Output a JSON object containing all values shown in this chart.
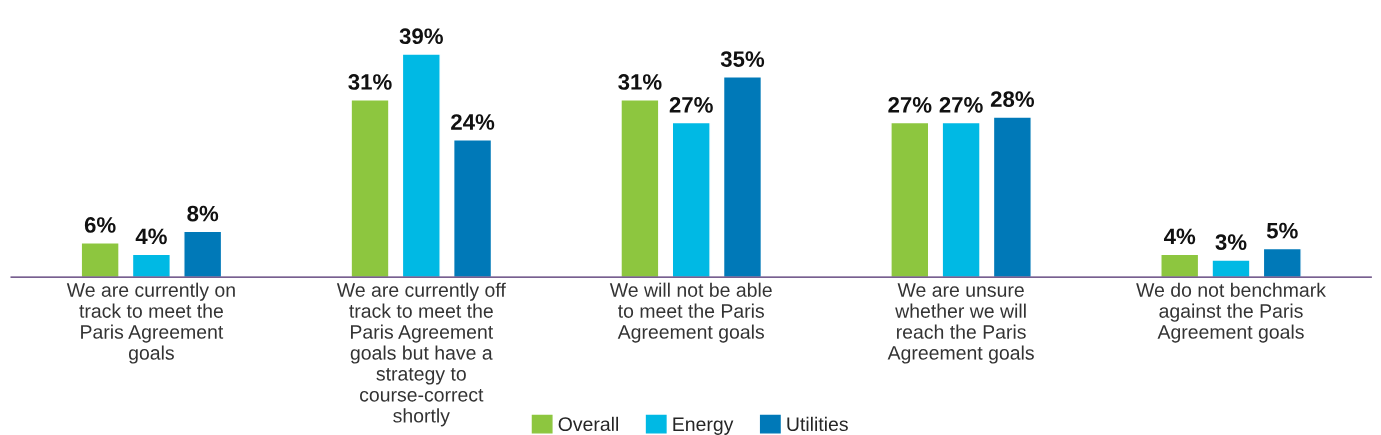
{
  "chart_data": {
    "type": "bar",
    "categories": [
      "We are currently on track to meet the Paris Agreement goals",
      "We are currently off track to meet the Paris Agreement goals but have a strategy to course-correct shortly",
      "We will not be able to meet the Paris Agreement goals",
      "We are unsure whether we will reach the Paris Agreement goals",
      "We do not benchmark against the Paris Agreement goals"
    ],
    "series": [
      {
        "name": "Overall",
        "color": "#8dc63f",
        "values": [
          6,
          31,
          31,
          27,
          4
        ],
        "value_labels": [
          "6%",
          "31%",
          "31%",
          "27%",
          "4%"
        ]
      },
      {
        "name": "Energy",
        "color": "#00b9e4",
        "values": [
          4,
          39,
          27,
          27,
          3
        ],
        "value_labels": [
          "4%",
          "39%",
          "27%",
          "27%",
          "3%"
        ]
      },
      {
        "name": "Utilities",
        "color": "#0079b8",
        "values": [
          8,
          24,
          35,
          28,
          5
        ],
        "value_labels": [
          "8%",
          "24%",
          "35%",
          "28%",
          "5%"
        ]
      }
    ],
    "legend": "bottom",
    "grid": false,
    "tick_labels": "x"
  }
}
